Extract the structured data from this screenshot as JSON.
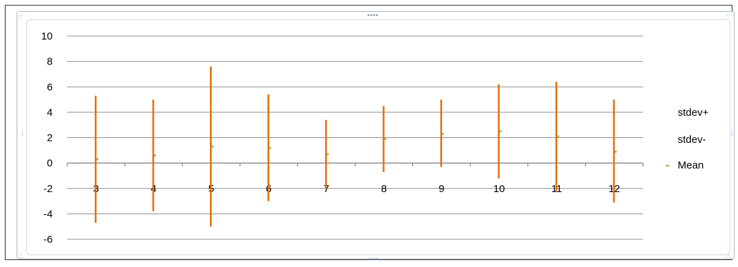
{
  "chart_data": {
    "type": "error-bar",
    "categories": [
      "3",
      "4",
      "5",
      "6",
      "7",
      "8",
      "9",
      "10",
      "11",
      "12"
    ],
    "series": [
      {
        "name": "stdev+",
        "values": [
          5.3,
          5.0,
          7.6,
          5.4,
          3.4,
          4.5,
          5.0,
          6.2,
          6.4,
          5.0
        ]
      },
      {
        "name": "stdev-",
        "values": [
          -4.7,
          -3.8,
          -5.0,
          -3.0,
          -2.0,
          -0.7,
          -0.3,
          -1.2,
          -2.2,
          -3.1
        ]
      },
      {
        "name": "Mean",
        "values": [
          0.3,
          0.6,
          1.3,
          1.2,
          0.7,
          1.9,
          2.3,
          2.5,
          2.1,
          0.9
        ]
      }
    ],
    "yticks": [
      10,
      8,
      6,
      4,
      2,
      0,
      -2,
      -4,
      -6
    ],
    "ylim": [
      -6,
      10
    ],
    "grid": true,
    "legend": "right",
    "colors": {
      "bar": "#e46c0a",
      "mean": "#9bbb59",
      "grid": "#8c8c8c"
    }
  }
}
